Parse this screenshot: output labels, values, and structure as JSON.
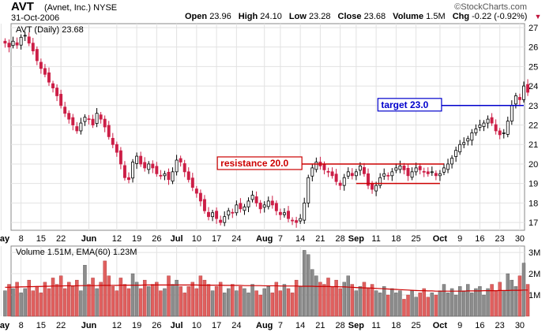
{
  "header": {
    "ticker": "AVT",
    "company": "(Avnet, Inc.)",
    "exchange": "NYSE",
    "date": "31-Oct-2006",
    "brand": "©StockCharts.com",
    "open_label": "Open",
    "open": "23.96",
    "high_label": "High",
    "high": "24.10",
    "low_label": "Low",
    "low": "23.28",
    "close_label": "Close",
    "close": "23.68",
    "volume_label": "Volume",
    "volume": "1.5M",
    "chg_label": "Chg",
    "chg": "-0.22 (-0.92%)",
    "chg_arrow": "▼"
  },
  "colors": {
    "up_bar": "#d9d9d9",
    "down_bar": "#e0605f",
    "candle_down": "#cc1e46",
    "ema": "#cc0000",
    "resistance": "#cc0000",
    "target": "#0000cc"
  },
  "chart_data": [
    {
      "type": "candlestick",
      "legend": "AVT (Daily) 23.68",
      "ylim": [
        16.6,
        27.2
      ],
      "yticks": [
        17,
        18,
        19,
        20,
        21,
        22,
        23,
        24,
        25,
        26,
        27
      ],
      "xticks": [
        {
          "label": "May",
          "t": 0,
          "month": true
        },
        {
          "label": "8",
          "t": 5
        },
        {
          "label": "15",
          "t": 10
        },
        {
          "label": "22",
          "t": 15
        },
        {
          "label": "Jun",
          "t": 22,
          "month": true
        },
        {
          "label": "12",
          "t": 29
        },
        {
          "label": "19",
          "t": 34
        },
        {
          "label": "26",
          "t": 39
        },
        {
          "label": "Jul",
          "t": 44,
          "month": true
        },
        {
          "label": "10",
          "t": 49
        },
        {
          "label": "17",
          "t": 54
        },
        {
          "label": "24",
          "t": 59
        },
        {
          "label": "Aug",
          "t": 66,
          "month": true
        },
        {
          "label": "7",
          "t": 70
        },
        {
          "label": "14",
          "t": 75
        },
        {
          "label": "21",
          "t": 80
        },
        {
          "label": "28",
          "t": 85
        },
        {
          "label": "Sep",
          "t": 89,
          "month": true
        },
        {
          "label": "11",
          "t": 94
        },
        {
          "label": "18",
          "t": 99
        },
        {
          "label": "25",
          "t": 104
        },
        {
          "label": "Oct",
          "t": 110,
          "month": true
        },
        {
          "label": "9",
          "t": 115
        },
        {
          "label": "16",
          "t": 120
        },
        {
          "label": "23",
          "t": 125
        },
        {
          "label": "30",
          "t": 130
        }
      ],
      "closes": [
        26.2,
        26.0,
        26.3,
        26.1,
        26.5,
        26.6,
        26.2,
        25.8,
        25.3,
        24.9,
        24.6,
        24.2,
        23.9,
        23.5,
        23.0,
        22.6,
        22.3,
        22.0,
        21.7,
        22.1,
        22.4,
        22.3,
        22.0,
        22.6,
        22.3,
        21.9,
        21.4,
        21.0,
        20.6,
        20.0,
        19.3,
        19.2,
        20.1,
        20.4,
        20.0,
        19.8,
        20.0,
        19.8,
        19.5,
        19.4,
        19.5,
        19.2,
        19.6,
        20.2,
        20.1,
        19.6,
        19.2,
        18.8,
        18.5,
        18.1,
        17.6,
        17.3,
        17.5,
        17.2,
        17.0,
        17.3,
        17.6,
        17.5,
        17.9,
        17.7,
        17.8,
        18.1,
        18.4,
        18.0,
        17.7,
        17.9,
        18.1,
        17.9,
        17.6,
        17.4,
        17.5,
        17.2,
        17.1,
        17.0,
        17.2,
        18.0,
        19.3,
        19.8,
        20.1,
        19.9,
        19.7,
        19.6,
        19.4,
        19.1,
        18.9,
        19.3,
        19.6,
        19.4,
        19.6,
        19.9,
        19.5,
        18.9,
        18.7,
        18.9,
        19.3,
        19.5,
        19.4,
        19.6,
        19.8,
        19.9,
        19.7,
        19.4,
        19.6,
        19.8,
        19.7,
        19.6,
        19.5,
        19.6,
        19.4,
        19.5,
        19.8,
        20.0,
        20.3,
        20.7,
        21.0,
        21.1,
        21.3,
        21.6,
        21.8,
        22.0,
        22.1,
        22.3,
        22.1,
        21.7,
        21.5,
        21.6,
        22.2,
        23.0,
        23.5,
        23.3,
        24.0,
        23.68
      ],
      "annotations": [
        {
          "text": "resistance 20.0",
          "y": 20.0,
          "t_start": 75,
          "t_end": 111
        },
        {
          "text": "",
          "y": 19.0,
          "t_start": 89,
          "t_end": 110
        },
        {
          "text": "target 23.0",
          "y": 23.0,
          "t_start": 110,
          "t_end": 131
        }
      ]
    },
    {
      "type": "bar",
      "legend": "Volume 1.51M, EMA(60) 1.23M",
      "ylim": [
        0,
        3.3
      ],
      "yticks": [
        {
          "label": "1M",
          "v": 1
        },
        {
          "label": "2M",
          "v": 2
        },
        {
          "label": "3M",
          "v": 3
        }
      ],
      "ema": [
        1.36,
        1.36,
        1.37,
        1.37,
        1.38,
        1.38,
        1.39,
        1.39,
        1.4,
        1.4,
        1.41,
        1.41,
        1.42,
        1.42,
        1.42,
        1.43,
        1.43,
        1.43,
        1.43,
        1.44,
        1.44,
        1.44,
        1.44,
        1.44,
        1.45,
        1.45,
        1.45,
        1.45,
        1.45,
        1.46,
        1.46,
        1.46,
        1.46,
        1.46,
        1.46,
        1.47,
        1.47,
        1.47,
        1.47,
        1.47,
        1.47,
        1.47,
        1.47,
        1.47,
        1.47,
        1.47,
        1.47,
        1.47,
        1.47,
        1.46,
        1.46,
        1.46,
        1.46,
        1.46,
        1.46,
        1.45,
        1.45,
        1.45,
        1.45,
        1.45,
        1.44,
        1.44,
        1.44,
        1.44,
        1.44,
        1.43,
        1.43,
        1.43,
        1.43,
        1.42,
        1.42,
        1.42,
        1.42,
        1.42,
        1.41,
        1.41,
        1.41,
        1.41,
        1.4,
        1.4,
        1.4,
        1.4,
        1.39,
        1.39,
        1.38,
        1.38,
        1.37,
        1.36,
        1.35,
        1.34,
        1.33,
        1.33,
        1.32,
        1.31,
        1.3,
        1.29,
        1.28,
        1.27,
        1.26,
        1.25,
        1.24,
        1.23,
        1.22,
        1.21,
        1.2,
        1.2,
        1.19,
        1.19,
        1.18,
        1.18,
        1.18,
        1.18,
        1.18,
        1.18,
        1.18,
        1.18,
        1.19,
        1.19,
        1.19,
        1.19,
        1.2,
        1.2,
        1.2,
        1.2,
        1.21,
        1.21,
        1.21,
        1.22,
        1.22,
        1.22,
        1.23,
        1.23
      ],
      "volumes": [
        1.2,
        1.5,
        1.3,
        1.6,
        1.1,
        1.3,
        1.7,
        1.2,
        1.4,
        1.1,
        1.6,
        1.3,
        1.8,
        1.5,
        1.9,
        1.3,
        1.6,
        1.4,
        1.7,
        1.2,
        2.4,
        1.5,
        1.8,
        1.3,
        1.6,
        2.6,
        1.9,
        1.4,
        1.2,
        1.8,
        1.5,
        1.3,
        2.0,
        1.6,
        1.3,
        1.7,
        1.4,
        1.5,
        1.6,
        1.2,
        1.3,
        1.9,
        1.5,
        1.7,
        1.4,
        1.1,
        1.4,
        1.6,
        1.3,
        1.9,
        1.7,
        1.5,
        1.2,
        1.4,
        1.6,
        1.1,
        1.3,
        1.5,
        1.2,
        1.4,
        1.3,
        1.1,
        1.5,
        1.2,
        1.0,
        1.3,
        1.4,
        1.1,
        1.6,
        1.2,
        1.5,
        1.3,
        1.1,
        1.7,
        1.4,
        3.1,
        2.9,
        2.2,
        1.9,
        1.6,
        1.5,
        1.8,
        1.4,
        1.7,
        1.3,
        1.6,
        1.9,
        1.5,
        1.2,
        1.4,
        1.6,
        1.3,
        1.5,
        1.2,
        1.1,
        1.4,
        1.0,
        1.3,
        1.1,
        1.2,
        0.8,
        1.0,
        1.2,
        0.9,
        1.1,
        1.3,
        0.9,
        1.1,
        1.0,
        1.2,
        1.5,
        1.1,
        1.3,
        1.0,
        1.4,
        1.2,
        1.5,
        1.1,
        1.3,
        1.4,
        1.0,
        1.3,
        1.5,
        1.2,
        1.6,
        1.2,
        2.0,
        1.7,
        1.4,
        1.9,
        2.5,
        1.5
      ]
    }
  ]
}
